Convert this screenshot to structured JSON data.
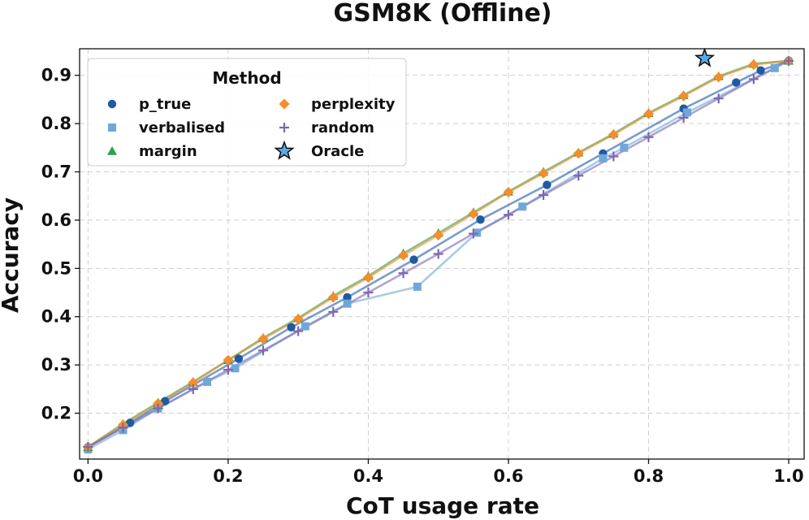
{
  "chart_data": {
    "type": "line",
    "title": "GSM8K (Offline)",
    "xlabel": "CoT usage rate",
    "ylabel": "Accuracy",
    "xlim": [
      -0.012,
      1.022
    ],
    "ylim": [
      0.105,
      0.955
    ],
    "xticks": [
      0.0,
      0.2,
      0.4,
      0.6,
      0.8,
      1.0
    ],
    "xtick_labels": [
      "0.0",
      "0.2",
      "0.4",
      "0.6",
      "0.8",
      "1.0"
    ],
    "yticks": [
      0.2,
      0.3,
      0.4,
      0.5,
      0.6,
      0.7,
      0.8,
      0.9
    ],
    "ytick_labels": [
      "0.2",
      "0.3",
      "0.4",
      "0.5",
      "0.6",
      "0.7",
      "0.8",
      "0.9"
    ],
    "grid": true,
    "legend": {
      "title": "Method",
      "placement": "top-left",
      "columns": 2
    },
    "series": [
      {
        "name": "p_true",
        "color": "#1f5aa6",
        "marker": "circle",
        "x": [
          0.0,
          0.06,
          0.11,
          0.215,
          0.29,
          0.37,
          0.465,
          0.56,
          0.655,
          0.735,
          0.85,
          0.925,
          0.96,
          1.0
        ],
        "y": [
          0.13,
          0.18,
          0.225,
          0.313,
          0.378,
          0.44,
          0.518,
          0.601,
          0.673,
          0.738,
          0.831,
          0.885,
          0.91,
          0.93
        ]
      },
      {
        "name": "verbalised",
        "color": "#6fa8d8",
        "marker": "square",
        "x": [
          0.0,
          0.05,
          0.1,
          0.17,
          0.21,
          0.31,
          0.37,
          0.47,
          0.555,
          0.62,
          0.735,
          0.765,
          0.855,
          0.98
        ],
        "y": [
          0.125,
          0.165,
          0.21,
          0.265,
          0.293,
          0.38,
          0.427,
          0.462,
          0.574,
          0.628,
          0.728,
          0.75,
          0.823,
          0.915
        ]
      },
      {
        "name": "margin",
        "color": "#2e9e4f",
        "marker": "triangle",
        "x": [
          0.0,
          0.05,
          0.1,
          0.15,
          0.2,
          0.25,
          0.3,
          0.35,
          0.4,
          0.45,
          0.5,
          0.55,
          0.6,
          0.65,
          0.7,
          0.75,
          0.8,
          0.85,
          0.9,
          0.95,
          1.0
        ],
        "y": [
          0.13,
          0.178,
          0.222,
          0.265,
          0.31,
          0.356,
          0.397,
          0.443,
          0.484,
          0.531,
          0.573,
          0.616,
          0.659,
          0.7,
          0.74,
          0.779,
          0.822,
          0.859,
          0.898,
          0.924,
          0.93
        ]
      },
      {
        "name": "perplexity",
        "color": "#f28e2b",
        "marker": "diamond",
        "x": [
          0.0,
          0.05,
          0.1,
          0.15,
          0.2,
          0.25,
          0.3,
          0.35,
          0.4,
          0.45,
          0.5,
          0.55,
          0.6,
          0.65,
          0.7,
          0.75,
          0.8,
          0.85,
          0.9,
          0.95,
          1.0
        ],
        "y": [
          0.13,
          0.176,
          0.22,
          0.263,
          0.31,
          0.354,
          0.395,
          0.44,
          0.481,
          0.527,
          0.569,
          0.613,
          0.658,
          0.697,
          0.738,
          0.777,
          0.82,
          0.857,
          0.896,
          0.922,
          0.93
        ]
      },
      {
        "name": "random",
        "color": "#7b68b0",
        "marker": "plus",
        "x": [
          0.0,
          0.05,
          0.1,
          0.15,
          0.2,
          0.25,
          0.3,
          0.35,
          0.4,
          0.45,
          0.5,
          0.55,
          0.6,
          0.65,
          0.7,
          0.75,
          0.8,
          0.85,
          0.9,
          0.95,
          1.0
        ],
        "y": [
          0.13,
          0.17,
          0.21,
          0.25,
          0.29,
          0.33,
          0.37,
          0.41,
          0.45,
          0.49,
          0.53,
          0.572,
          0.611,
          0.652,
          0.692,
          0.732,
          0.772,
          0.812,
          0.852,
          0.892,
          0.93
        ]
      }
    ],
    "oracle": {
      "name": "Oracle",
      "color": "#5aa9e6",
      "marker": "star",
      "x": 0.88,
      "y": 0.935
    }
  }
}
